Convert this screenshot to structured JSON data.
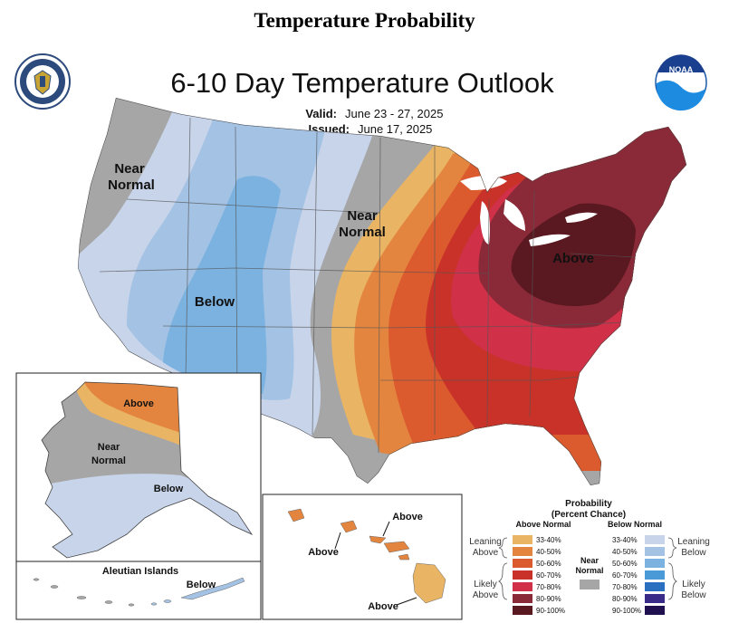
{
  "page_title": "Temperature Probability",
  "map": {
    "title": "6-10 Day Temperature Outlook",
    "valid_label": "Valid:",
    "valid_dates": "June 23 - 27, 2025",
    "issued_label": "Issued:",
    "issued_date": "June 17, 2025",
    "logos": {
      "left": "department-of-commerce-seal",
      "right": "NOAA"
    },
    "right_logo_text": "NOAA"
  },
  "regions": {
    "conus_labels": {
      "near_normal_west_1": "Near",
      "near_normal_west_2": "Normal",
      "near_normal_central_1": "Near",
      "near_normal_central_2": "Normal",
      "below": "Below",
      "above": "Above"
    },
    "alaska_labels": {
      "above": "Above",
      "near_normal_1": "Near",
      "near_normal_2": "Normal",
      "below": "Below"
    },
    "aleutian_title": "Aleutian Islands",
    "aleutian_below": "Below",
    "hawaii_labels": {
      "above_north": "Above",
      "above_west": "Above",
      "above_south": "Above"
    }
  },
  "legend": {
    "title_1": "Probability",
    "title_2": "(Percent Chance)",
    "above_header": "Above Normal",
    "below_header": "Below Normal",
    "ranges": [
      "33-40%",
      "40-50%",
      "50-60%",
      "60-70%",
      "70-80%",
      "80-90%",
      "90-100%"
    ],
    "above_colors": [
      "#e9b565",
      "#e4853f",
      "#db5a2e",
      "#c93228",
      "#d03048",
      "#8a2a38",
      "#5a1820"
    ],
    "below_colors": [
      "#c7d4ea",
      "#a3c2e4",
      "#7bb2e0",
      "#4a9ad8",
      "#2a6fc0",
      "#3a2a88",
      "#21104f"
    ],
    "near_normal_1": "Near",
    "near_normal_2": "Normal",
    "near_normal_color": "#a6a6a6",
    "leaning_above_1": "Leaning",
    "leaning_above_2": "Above",
    "likely_above_1": "Likely",
    "likely_above_2": "Above",
    "leaning_below_1": "Leaning",
    "leaning_below_2": "Below",
    "likely_below_1": "Likely",
    "likely_below_2": "Below"
  }
}
